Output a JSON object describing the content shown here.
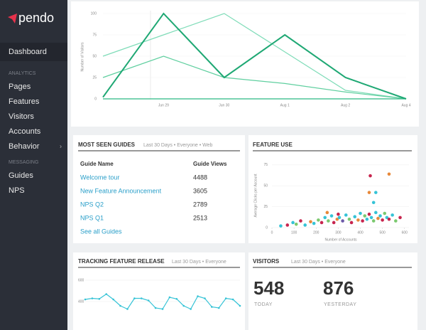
{
  "sidebar": {
    "logo": "pendo",
    "dashboard": "Dashboard",
    "sections": [
      {
        "heading": "ANALYTICS",
        "items": [
          "Pages",
          "Features",
          "Visitors",
          "Accounts",
          "Behavior"
        ]
      },
      {
        "heading": "MESSAGING",
        "items": [
          "Guides",
          "NPS"
        ]
      }
    ]
  },
  "visitors_chart": {
    "type": "line",
    "y_label": "Number of Visitors",
    "categories": [
      null,
      "Jun 29",
      "Jun 30",
      "Aug 1",
      "Aug 2",
      "Aug 4"
    ],
    "ylim": [
      0,
      100
    ],
    "yticks": [
      0,
      25,
      50,
      75,
      100
    ],
    "series": [
      {
        "color": "#7fdcb8",
        "values": [
          50,
          75,
          100,
          55,
          10,
          0
        ]
      },
      {
        "color": "#5fcf9f",
        "values": [
          25,
          50,
          25,
          18,
          8,
          0
        ]
      },
      {
        "color": "#2bb985",
        "values": [
          0,
          0,
          0,
          0,
          0,
          0
        ]
      },
      {
        "color": "#1fa874",
        "values": [
          2,
          100,
          25,
          75,
          25,
          0
        ]
      }
    ]
  },
  "guides": {
    "title": "MOST SEEN GUIDES",
    "subtitle": "Last 30 Days • Everyone • Web",
    "columns": [
      "Guide Name",
      "Guide Views"
    ],
    "rows": [
      [
        "Welcome tour",
        4488
      ],
      [
        "New Feature Announcement",
        3605
      ],
      [
        "NPS Q2",
        2789
      ],
      [
        "NPS Q1",
        2513
      ]
    ],
    "link": "See all Guides"
  },
  "feature_use": {
    "type": "scatter",
    "title": "FEATURE USE",
    "x_label": "Number of Accounts",
    "y_label": "Average Clicks per Account",
    "xlim": [
      0,
      620
    ],
    "xticks": [
      0,
      100,
      200,
      300,
      400,
      500,
      600
    ],
    "ylim": [
      0,
      80
    ],
    "yticks": [
      0,
      25,
      50,
      75
    ],
    "x": [
      40,
      70,
      95,
      110,
      130,
      150,
      175,
      190,
      210,
      225,
      240,
      255,
      270,
      280,
      295,
      305,
      320,
      335,
      350,
      360,
      375,
      390,
      400,
      410,
      420,
      430,
      440,
      450,
      460,
      470,
      480,
      490,
      500,
      510,
      520,
      530,
      545,
      560,
      580,
      445,
      530,
      440,
      470,
      460,
      300,
      250
    ],
    "y": [
      2,
      3,
      6,
      4,
      8,
      3,
      7,
      5,
      9,
      6,
      12,
      8,
      14,
      6,
      10,
      12,
      8,
      15,
      10,
      6,
      13,
      9,
      17,
      8,
      14,
      10,
      16,
      12,
      8,
      18,
      11,
      14,
      9,
      17,
      12,
      10,
      15,
      8,
      12,
      62,
      64,
      42,
      42,
      30,
      16,
      18
    ],
    "colors": [
      "#35c3d6",
      "#c7254e",
      "#35c3d6",
      "#7bc96f",
      "#c7254e",
      "#35c3d6",
      "#e8893a",
      "#35c3d6",
      "#7bc96f",
      "#c7254e",
      "#35c3d6",
      "#7bc96f",
      "#35c3d6",
      "#c7254e",
      "#e8893a",
      "#35c3d6",
      "#6c5aa8",
      "#35c3d6",
      "#7bc96f",
      "#c7254e",
      "#35c3d6",
      "#e8893a",
      "#35c3d6",
      "#c7254e",
      "#7bc96f",
      "#35c3d6",
      "#c7254e",
      "#35c3d6",
      "#7bc96f",
      "#35c3d6",
      "#e8893a",
      "#35c3d6",
      "#c7254e",
      "#7bc96f",
      "#35c3d6",
      "#c7254e",
      "#35c3d6",
      "#7bc96f",
      "#c7254e",
      "#c7254e",
      "#e8893a",
      "#e8893a",
      "#35c3d6",
      "#35c3d6",
      "#c7254e",
      "#e8893a"
    ]
  },
  "tracking": {
    "type": "line",
    "title": "TRACKING FEATURE RELEASE",
    "subtitle": "Last 30 Days • Everyone",
    "ylim": [
      300,
      640
    ],
    "yticks": [
      400,
      600
    ],
    "series": [
      {
        "color": "#35c3d6",
        "values": [
          420,
          430,
          425,
          470,
          420,
          360,
          330,
          430,
          430,
          410,
          340,
          330,
          440,
          425,
          360,
          330,
          450,
          430,
          350,
          340,
          430,
          420,
          360
        ]
      }
    ]
  },
  "visitors": {
    "title": "VISITORS",
    "subtitle": "Last 30 Days • Everyone",
    "stats": [
      {
        "value": 548,
        "label": "TODAY"
      },
      {
        "value": 876,
        "label": "YESTERDAY"
      }
    ]
  }
}
